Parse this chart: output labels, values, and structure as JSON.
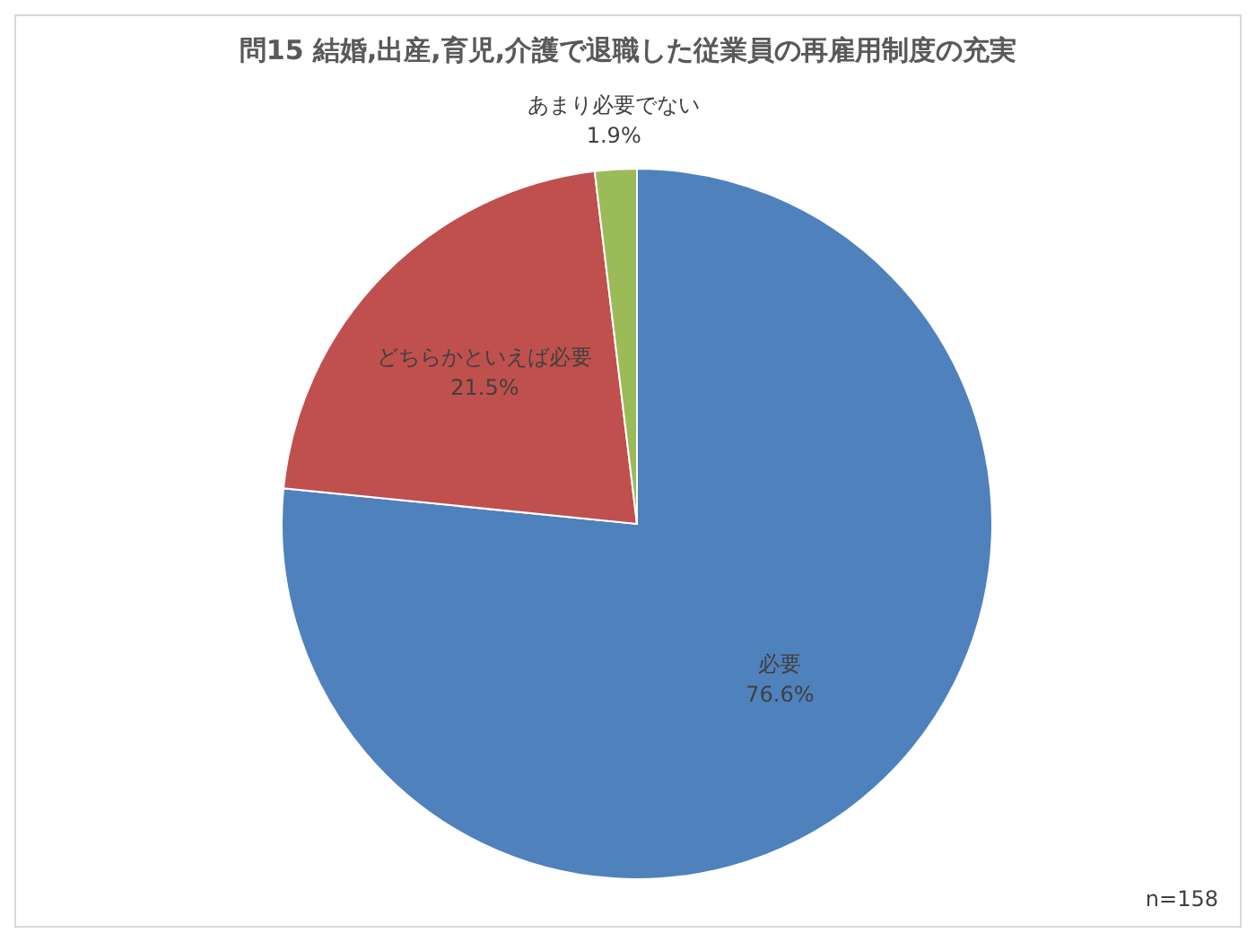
{
  "chart_data": {
    "type": "pie",
    "title": "問15  結婚,出産,育児,介護で退職した従業員の再雇用制度の充実",
    "categories": [
      "必要",
      "どちらかといえば必要",
      "あまり必要でない"
    ],
    "values": [
      76.6,
      21.5,
      1.9
    ],
    "value_labels": [
      "76.6%",
      "21.5%",
      "1.9%"
    ],
    "colors": [
      "#4f81bd",
      "#c0504d",
      "#9bbb59"
    ],
    "legend": false,
    "annotations": [
      "n=158"
    ]
  }
}
